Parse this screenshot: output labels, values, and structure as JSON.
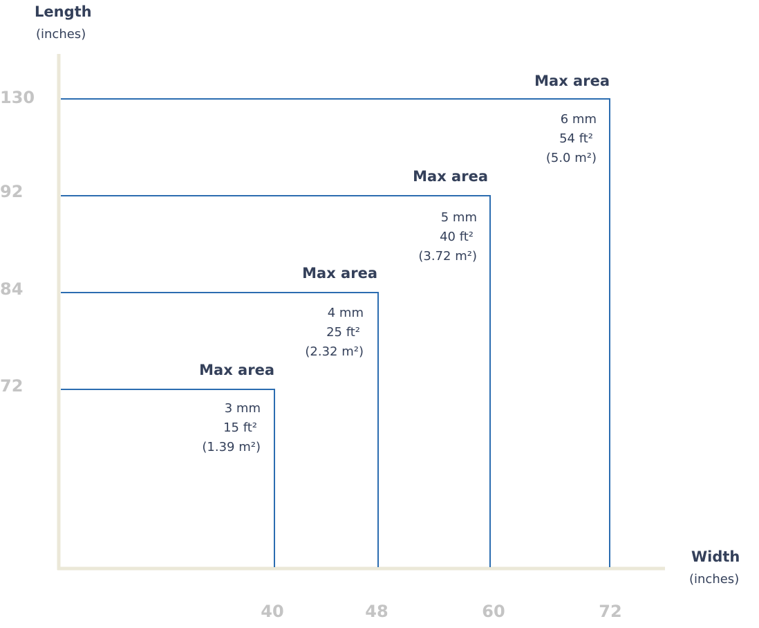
{
  "colors": {
    "axis": "#ebe8d8",
    "box_line": "#2b6cb0",
    "tick": "#c4c4c4",
    "text": "#34405a"
  },
  "chart_data": {
    "type": "step-area",
    "title": "",
    "xlabel": "Width",
    "xunit": "(inches)",
    "ylabel": "Length",
    "yunit": "(inches)",
    "x_ticks": [
      "40",
      "48",
      "60",
      "72"
    ],
    "y_ticks": [
      "72",
      "84",
      "92",
      "130"
    ],
    "series": [
      {
        "name": "3 mm",
        "width": 40,
        "length": 72,
        "title": "Max area",
        "thickness": "3 mm",
        "area_ft": "15 ft²",
        "area_m": "(1.39 m²)"
      },
      {
        "name": "4 mm",
        "width": 48,
        "length": 84,
        "title": "Max area",
        "thickness": "4 mm",
        "area_ft": "25 ft²",
        "area_m": "(2.32 m²)"
      },
      {
        "name": "5 mm",
        "width": 60,
        "length": 92,
        "title": "Max area",
        "thickness": "5 mm",
        "area_ft": "40 ft²",
        "area_m": "(3.72 m²)"
      },
      {
        "name": "6 mm",
        "width": 72,
        "length": 130,
        "title": "Max area",
        "thickness": "6 mm",
        "area_ft": "54 ft²",
        "area_m": "(5.0 m²)"
      }
    ]
  }
}
